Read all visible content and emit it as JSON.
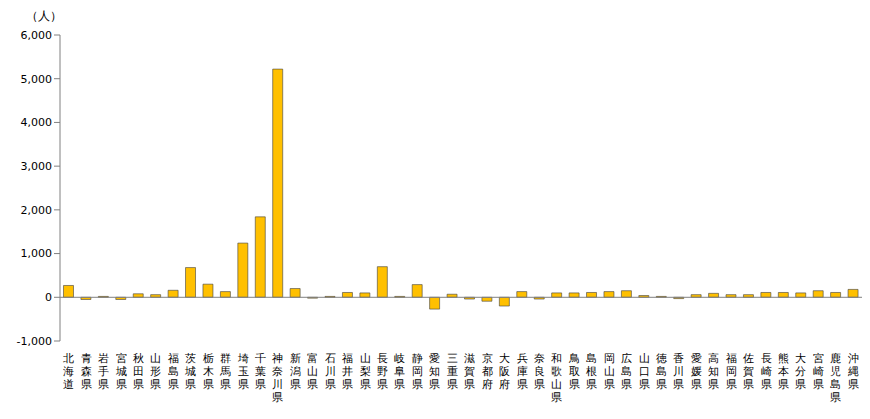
{
  "chart_data": {
    "type": "bar",
    "y_label": "（人）",
    "categories": [
      "北海道",
      "青森県",
      "岩手県",
      "宮城県",
      "秋田県",
      "山形県",
      "福島県",
      "茨城県",
      "栃木県",
      "群馬県",
      "埼玉県",
      "千葉県",
      "神奈川県",
      "新潟県",
      "富山県",
      "石川県",
      "福井県",
      "山梨県",
      "長野県",
      "岐阜県",
      "静岡県",
      "愛知県",
      "三重県",
      "滋賀県",
      "京都府",
      "大阪府",
      "兵庫県",
      "奈良県",
      "和歌山県",
      "鳥取県",
      "島根県",
      "岡山県",
      "広島県",
      "山口県",
      "徳島県",
      "香川県",
      "愛媛県",
      "高知県",
      "福岡県",
      "佐賀県",
      "長崎県",
      "熊本県",
      "大分県",
      "宮崎県",
      "鹿児島県",
      "沖縄県"
    ],
    "values": [
      270,
      -50,
      20,
      -50,
      80,
      60,
      160,
      680,
      300,
      130,
      1240,
      1840,
      5220,
      200,
      -20,
      20,
      110,
      100,
      700,
      20,
      290,
      -270,
      70,
      -40,
      -90,
      -200,
      130,
      -40,
      100,
      100,
      110,
      130,
      150,
      40,
      20,
      -30,
      60,
      90,
      60,
      60,
      110,
      110,
      100,
      150,
      110,
      180
    ],
    "color": "#FFC000",
    "ylim": [
      -1000,
      6000
    ],
    "yticks": [
      {
        "value": -1000,
        "label": "-1,000"
      },
      0,
      {
        "value": 1000,
        "label": "1,000"
      },
      {
        "value": 2000,
        "label": "2,000"
      },
      {
        "value": 3000,
        "label": "3,000"
      },
      {
        "value": 4000,
        "label": "4,000"
      },
      {
        "value": 5000,
        "label": "5,000"
      },
      {
        "value": 6000,
        "label": "6,000"
      }
    ],
    "grid": false
  }
}
